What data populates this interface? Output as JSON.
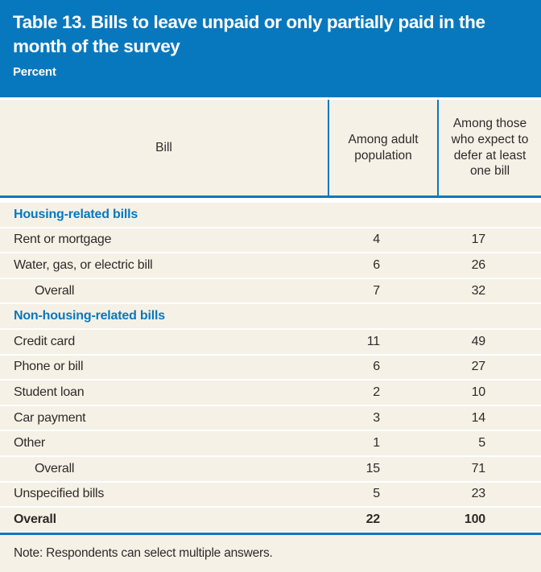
{
  "colors": {
    "accent_blue": "#0878be",
    "panel_cream": "#f5f1e7",
    "title_text": "#ffffff",
    "body_text": "#2e2b28"
  },
  "header": {
    "title": "Table 13. Bills to leave unpaid or only partially paid in the month of the survey",
    "subtitle": "Percent"
  },
  "table": {
    "columns": [
      "Bill",
      "Among adult population",
      "Among those who expect to defer at least one bill"
    ],
    "rows": [
      {
        "type": "section",
        "label": "Housing-related bills"
      },
      {
        "type": "data",
        "label": "Rent or mortgage",
        "adult": "4",
        "defer": "17"
      },
      {
        "type": "data",
        "label": "Water, gas, or electric bill",
        "adult": "6",
        "defer": "26"
      },
      {
        "type": "data-indent",
        "label": "Overall",
        "adult": "7",
        "defer": "32"
      },
      {
        "type": "section",
        "label": "Non-housing-related bills"
      },
      {
        "type": "data",
        "label": "Credit card",
        "adult": "11",
        "defer": "49"
      },
      {
        "type": "data",
        "label": "Phone or bill",
        "adult": "6",
        "defer": "27"
      },
      {
        "type": "data",
        "label": "Student loan",
        "adult": "2",
        "defer": "10"
      },
      {
        "type": "data",
        "label": "Car payment",
        "adult": "3",
        "defer": "14"
      },
      {
        "type": "data",
        "label": "Other",
        "adult": "1",
        "defer": "5"
      },
      {
        "type": "data-indent",
        "label": "Overall",
        "adult": "15",
        "defer": "71"
      },
      {
        "type": "data",
        "label": "Unspecified bills",
        "adult": "5",
        "defer": "23"
      },
      {
        "type": "data-total",
        "label": "Overall",
        "adult": "22",
        "defer": "100"
      }
    ]
  },
  "note": "Note: Respondents can select multiple answers."
}
